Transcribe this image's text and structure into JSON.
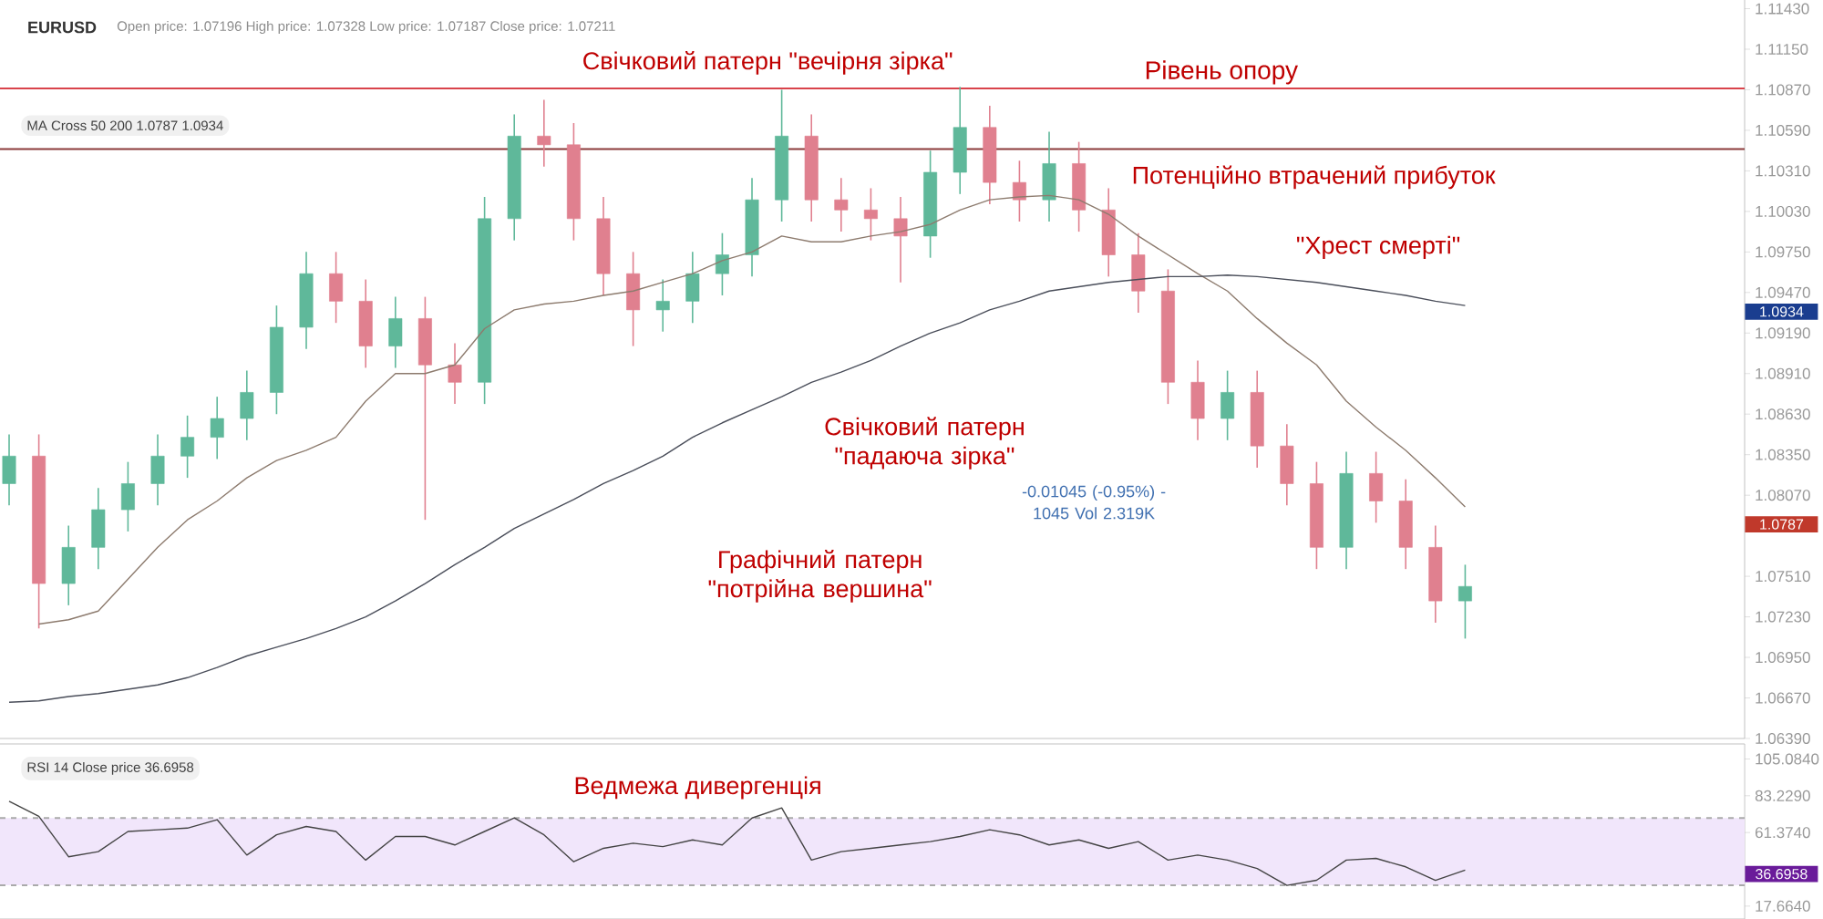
{
  "chart_data": [
    {
      "type": "candlestick",
      "title": "EURUSD",
      "subtitle": "Open price: 1.07196 High price: 1.07328 Low price: 1.07187 Close price: 1.07211",
      "categories": [
        null,
        null,
        null,
        null,
        null,
        null,
        null,
        null,
        null,
        null,
        null,
        null,
        null,
        null,
        null,
        null,
        null,
        null,
        null,
        null,
        null,
        null,
        null,
        null,
        null,
        null,
        null,
        null,
        null,
        null,
        null,
        null,
        null,
        null,
        null,
        null,
        null,
        null,
        null,
        null,
        null,
        null,
        null,
        null,
        null,
        null,
        null,
        null,
        null,
        null
      ],
      "ohlc": [
        [
          1.0815,
          1.0849,
          1.08,
          1.0834
        ],
        [
          1.0834,
          1.0849,
          1.0715,
          1.0746
        ],
        [
          1.0746,
          1.0786,
          1.0731,
          1.0771
        ],
        [
          1.0771,
          1.0812,
          1.0756,
          1.0797
        ],
        [
          1.0797,
          1.083,
          1.0782,
          1.0815
        ],
        [
          1.0815,
          1.0849,
          1.08,
          1.0834
        ],
        [
          1.0834,
          1.0862,
          1.0819,
          1.0847
        ],
        [
          1.0847,
          1.0875,
          1.0832,
          1.086
        ],
        [
          1.086,
          1.0893,
          1.0845,
          1.0878
        ],
        [
          1.0878,
          1.0938,
          1.0863,
          1.0923
        ],
        [
          1.0923,
          1.0975,
          1.0908,
          1.096
        ],
        [
          1.096,
          1.0975,
          1.0926,
          1.0941
        ],
        [
          1.0941,
          1.0956,
          1.0895,
          1.091
        ],
        [
          1.091,
          1.0944,
          1.0895,
          1.0929
        ],
        [
          1.0929,
          1.0944,
          1.079,
          1.0897
        ],
        [
          1.0897,
          1.0912,
          1.087,
          1.0885
        ],
        [
          1.0885,
          1.1013,
          1.087,
          1.0998
        ],
        [
          1.0998,
          1.107,
          1.0983,
          1.1055
        ],
        [
          1.1055,
          1.108,
          1.1034,
          1.1049
        ],
        [
          1.1049,
          1.1064,
          1.0983,
          1.0998
        ],
        [
          1.0998,
          1.1013,
          1.0945,
          1.096
        ],
        [
          1.096,
          1.0975,
          1.091,
          1.0935
        ],
        [
          1.0935,
          1.0956,
          1.092,
          1.0941
        ],
        [
          1.0941,
          1.0975,
          1.0926,
          1.096
        ],
        [
          1.096,
          1.0988,
          1.0945,
          1.0973
        ],
        [
          1.0973,
          1.1026,
          1.0958,
          1.1011
        ],
        [
          1.1011,
          1.1087,
          1.0996,
          1.1055
        ],
        [
          1.1055,
          1.107,
          1.0996,
          1.1011
        ],
        [
          1.1011,
          1.1026,
          1.0989,
          1.1004
        ],
        [
          1.1004,
          1.1019,
          1.0983,
          1.0998
        ],
        [
          1.0998,
          1.1013,
          1.0954,
          1.0986
        ],
        [
          1.0986,
          1.1045,
          1.0971,
          1.103
        ],
        [
          1.103,
          1.1089,
          1.1015,
          1.1061
        ],
        [
          1.1061,
          1.1076,
          1.1008,
          1.1023
        ],
        [
          1.1023,
          1.1038,
          1.0996,
          1.1011
        ],
        [
          1.1011,
          1.1058,
          1.0996,
          1.1036
        ],
        [
          1.1036,
          1.1051,
          1.0989,
          1.1004
        ],
        [
          1.1004,
          1.1019,
          1.0958,
          1.0973
        ],
        [
          1.0973,
          1.0988,
          1.0933,
          1.0948
        ],
        [
          1.0948,
          1.0963,
          1.087,
          1.0885
        ],
        [
          1.0885,
          1.09,
          1.0845,
          1.086
        ],
        [
          1.086,
          1.0893,
          1.0845,
          1.0878
        ],
        [
          1.0878,
          1.0893,
          1.0826,
          1.0841
        ],
        [
          1.0841,
          1.0856,
          1.08,
          1.0815
        ],
        [
          1.0815,
          1.083,
          1.0756,
          1.0771
        ],
        [
          1.0771,
          1.0837,
          1.0756,
          1.0822
        ],
        [
          1.0822,
          1.0837,
          1.0788,
          1.0803
        ],
        [
          1.0803,
          1.0818,
          1.0756,
          1.0771
        ],
        [
          1.0771,
          1.0786,
          1.0719,
          1.0734
        ],
        [
          1.0734,
          1.0759,
          1.0708,
          1.0744
        ]
      ],
      "colors": [
        "#5fb89a",
        "#e0808f",
        "#5fb89a",
        "#5fb89a",
        "#5fb89a",
        "#5fb89a",
        "#5fb89a",
        "#5fb89a",
        "#5fb89a",
        "#5fb89a",
        "#5fb89a",
        "#e0808f",
        "#e0808f",
        "#5fb89a",
        "#e0808f",
        "#e0808f",
        "#5fb89a",
        "#5fb89a",
        "#e0808f",
        "#e0808f",
        "#e0808f",
        "#e0808f",
        "#5fb89a",
        "#5fb89a",
        "#5fb89a",
        "#5fb89a",
        "#5fb89a",
        "#e0808f",
        "#e0808f",
        "#e0808f",
        "#e0808f",
        "#5fb89a",
        "#5fb89a",
        "#e0808f",
        "#e0808f",
        "#5fb89a",
        "#e0808f",
        "#e0808f",
        "#e0808f",
        "#e0808f",
        "#e0808f",
        "#5fb89a",
        "#e0808f",
        "#e0808f",
        "#e0808f",
        "#5fb89a",
        "#e0808f",
        "#e0808f",
        "#e0808f",
        "#5fb89a"
      ],
      "series": [
        {
          "type": "line",
          "color": "#8d7b6e",
          "values": [
            null,
            1.0718,
            1.0721,
            1.0727,
            1.0749,
            1.0771,
            1.079,
            1.0803,
            1.0819,
            1.0831,
            1.0838,
            1.0847,
            1.0872,
            1.0891,
            1.0891,
            1.0897,
            1.0922,
            1.0935,
            1.0939,
            1.0941,
            1.0945,
            1.0948,
            1.0954,
            1.096,
            1.0969,
            1.0975,
            1.0986,
            1.0982,
            1.0982,
            1.0986,
            1.0989,
            1.0994,
            1.1004,
            1.1011,
            1.1013,
            1.1014,
            1.1011,
            1.1001,
            1.0986,
            1.0973,
            1.096,
            1.0948,
            1.0929,
            1.0912,
            1.0897,
            1.0872,
            1.0854,
            1.0838,
            1.0819,
            1.0799
          ]
        },
        {
          "type": "line",
          "color": "#4a4e5a",
          "values": [
            1.0664,
            1.0665,
            1.0668,
            1.067,
            1.0673,
            1.0676,
            1.0681,
            1.0688,
            1.0696,
            1.0702,
            1.0708,
            1.0715,
            1.0723,
            1.0734,
            1.0746,
            1.0759,
            1.0771,
            1.0784,
            1.0794,
            1.0804,
            1.0815,
            1.0824,
            1.0834,
            1.0847,
            1.0857,
            1.0866,
            1.0875,
            1.0885,
            1.0892,
            1.09,
            1.091,
            1.0919,
            1.0926,
            1.0935,
            1.0941,
            1.0948,
            1.0951,
            1.0954,
            1.0956,
            1.0958,
            1.0958,
            1.0959,
            1.0958,
            1.0956,
            1.0954,
            1.0951,
            1.0948,
            1.0945,
            1.0941,
            1.0938
          ]
        }
      ],
      "ylim": [
        1.0639,
        1.1149
      ],
      "yticks": [
        {
          "value": 1.1143,
          "label": "1.11430"
        },
        {
          "value": 1.1115,
          "label": "1.11150"
        },
        {
          "value": 1.1087,
          "label": "1.10870"
        },
        {
          "value": 1.1059,
          "label": "1.10590"
        },
        {
          "value": 1.1031,
          "label": "1.10310"
        },
        {
          "value": 1.1003,
          "label": "1.10030"
        },
        {
          "value": 1.0975,
          "label": "1.09750"
        },
        {
          "value": 1.0947,
          "label": "1.09470"
        },
        {
          "value": 1.0919,
          "label": "1.09190"
        },
        {
          "value": 1.0891,
          "label": "1.08910"
        },
        {
          "value": 1.0863,
          "label": "1.08630"
        },
        {
          "value": 1.0835,
          "label": "1.08350"
        },
        {
          "value": 1.0807,
          "label": "1.08070"
        },
        {
          "value": 1.0751,
          "label": "1.07510"
        },
        {
          "value": 1.0723,
          "label": "1.07230"
        },
        {
          "value": 1.0695,
          "label": "1.06950"
        },
        {
          "value": 1.0667,
          "label": "1.06670"
        },
        {
          "value": 1.0639,
          "label": "1.06390"
        }
      ],
      "tick_labels": "y",
      "ref_lines": [
        {
          "axis": "y",
          "value": 1.1088,
          "label": "Рівень опору",
          "color": "#d9434b"
        },
        {
          "axis": "y",
          "value": 1.1046,
          "color": "#8b3a3a"
        }
      ],
      "annotations": [
        "Свічковий патерн \"вечірня зірка\"",
        "Потенційно втрачений прибуток",
        "\"Хрест смерті\"",
        "Свічковий патерн \"падаюча зірка\"",
        "Графічний патерн \"потрійна вершина\"",
        "-0.01045 (-0.95%) -1045 Vol 2.319K",
        "MA Cross 50 200 1.0787 1.0934",
        "1.0934",
        "1.0787"
      ]
    },
    {
      "type": "line",
      "categories": [
        null,
        null,
        null,
        null,
        null,
        null,
        null,
        null,
        null,
        null,
        null,
        null,
        null,
        null,
        null,
        null,
        null,
        null,
        null,
        null,
        null,
        null,
        null,
        null,
        null,
        null,
        null,
        null,
        null,
        null,
        null,
        null,
        null,
        null,
        null,
        null,
        null,
        null,
        null,
        null,
        null,
        null,
        null,
        null,
        null,
        null,
        null,
        null,
        null,
        null
      ],
      "values": [
        80,
        71,
        47,
        50,
        62,
        63,
        64,
        69,
        48,
        60,
        65,
        62,
        45,
        59,
        59,
        54,
        62,
        70,
        60,
        44,
        52,
        55,
        53,
        57,
        54,
        70,
        76,
        45,
        50,
        52,
        54,
        56,
        59,
        63,
        60,
        54,
        57,
        52,
        56,
        45,
        48,
        45,
        40,
        30,
        33,
        45,
        46,
        41,
        33,
        39
      ],
      "color": "#444444",
      "ylim": [
        10.0,
        114.0
      ],
      "yticks": [
        {
          "value": 105.084,
          "label": "105.0840"
        },
        {
          "value": 83.229,
          "label": "83.2290"
        },
        {
          "value": 61.374,
          "label": "61.3740"
        },
        {
          "value": 17.664,
          "label": "17.6640"
        }
      ],
      "tick_labels": "y",
      "bands": [
        {
          "axis": "y",
          "from": 30,
          "to": 70,
          "color": "#f1e6fb"
        }
      ],
      "ref_lines": [
        {
          "axis": "y",
          "value": 70,
          "color": "#aaaaaa",
          "line_style": "dashed"
        },
        {
          "axis": "y",
          "value": 30,
          "color": "#aaaaaa",
          "line_style": "dashed"
        }
      ],
      "annotations": [
        "Ведмежа дивергенція",
        "RSI 14 Close price 36.6958",
        "36.6958"
      ]
    }
  ]
}
